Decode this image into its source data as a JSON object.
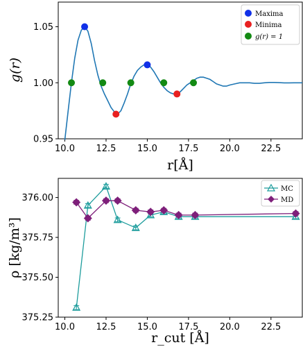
{
  "chart_data": [
    {
      "type": "line",
      "title": "",
      "xlabel": "r[Å]",
      "ylabel": "g(r)",
      "xlim": [
        9.6,
        24.4
      ],
      "ylim": [
        0.95,
        1.072
      ],
      "xticks": [
        "10.0",
        "12.5",
        "15.0",
        "17.5",
        "20.0",
        "22.5"
      ],
      "xtick_values": [
        10,
        12.5,
        15,
        17.5,
        20,
        22.5
      ],
      "yticks": [
        "0.95",
        "1.00",
        "1.05"
      ],
      "ytick_values": [
        0.95,
        1.0,
        1.05
      ],
      "curve": {
        "color": "#1f77b4",
        "x": [
          10.0,
          10.2,
          10.4,
          10.6,
          10.8,
          11.0,
          11.2,
          11.4,
          11.6,
          11.8,
          12.0,
          12.2,
          12.4,
          12.6,
          12.8,
          13.0,
          13.2,
          13.4,
          13.6,
          13.8,
          14.0,
          14.2,
          14.4,
          14.6,
          14.8,
          15.0,
          15.2,
          15.4,
          15.6,
          15.8,
          16.0,
          16.2,
          16.4,
          16.6,
          16.8,
          17.0,
          17.2,
          17.4,
          17.6,
          17.8,
          18.0,
          18.2,
          18.4,
          18.6,
          18.8,
          19.0,
          19.2,
          19.4,
          19.6,
          19.8,
          20.0,
          20.3,
          20.6,
          20.9,
          21.2,
          21.5,
          21.8,
          22.1,
          22.4,
          22.7,
          23.0,
          23.3,
          23.6,
          23.9,
          24.2,
          24.4
        ],
        "y": [
          0.949,
          0.975,
          1.0,
          1.022,
          1.038,
          1.047,
          1.05,
          1.046,
          1.035,
          1.02,
          1.007,
          0.997,
          0.99,
          0.984,
          0.978,
          0.974,
          0.972,
          0.975,
          0.982,
          0.99,
          0.999,
          1.006,
          1.011,
          1.014,
          1.016,
          1.016,
          1.014,
          1.01,
          1.005,
          1.0,
          0.996,
          0.993,
          0.991,
          0.99,
          0.99,
          0.992,
          0.995,
          0.998,
          1.0,
          1.002,
          1.004,
          1.005,
          1.005,
          1.004,
          1.003,
          1.001,
          0.999,
          0.998,
          0.997,
          0.997,
          0.998,
          0.999,
          1.0,
          1.0,
          1.0,
          0.9995,
          0.9995,
          1.0,
          1.0003,
          1.0003,
          1.0001,
          0.9999,
          0.9999,
          1.0,
          1.0,
          1.0
        ]
      },
      "series": [
        {
          "name": "Maxima",
          "color": "#1030e8",
          "x": [
            11.2,
            15.0
          ],
          "y": [
            1.05,
            1.016
          ]
        },
        {
          "name": "Minima",
          "color": "#e82020",
          "x": [
            13.1,
            16.8
          ],
          "y": [
            0.972,
            0.99
          ]
        },
        {
          "name": "g(r) = 1",
          "color": "#138a13",
          "x": [
            10.4,
            12.3,
            14.0,
            16.0,
            17.8
          ],
          "y": [
            1.0,
            1.0,
            1.0,
            1.0,
            1.0
          ]
        }
      ],
      "legend": "top-right"
    },
    {
      "type": "line",
      "title": "",
      "xlabel": "r_cut [Å]",
      "ylabel": "ρ [kg/m³]",
      "xlim": [
        9.6,
        24.4
      ],
      "ylim": [
        375.25,
        376.12
      ],
      "xticks": [
        "10.0",
        "12.5",
        "15.0",
        "17.5",
        "20.0",
        "22.5"
      ],
      "xtick_values": [
        10,
        12.5,
        15,
        17.5,
        20,
        22.5
      ],
      "yticks": [
        "375.25",
        "375.50",
        "375.75",
        "376.00"
      ],
      "ytick_values": [
        375.25,
        375.5,
        375.75,
        376.0
      ],
      "series": [
        {
          "name": "MC",
          "color": "#1c9c9c",
          "marker": "triangle-up",
          "x": [
            10.7,
            11.4,
            12.5,
            13.2,
            14.3,
            15.2,
            16.0,
            16.9,
            17.9,
            24.0
          ],
          "y": [
            375.31,
            375.95,
            376.07,
            375.86,
            375.81,
            375.89,
            375.91,
            375.88,
            375.88,
            375.88
          ],
          "err": [
            0.012,
            0.012,
            0.012,
            0.012,
            0.012,
            0.012,
            0.012,
            0.012,
            0.012,
            0.012
          ]
        },
        {
          "name": "MD",
          "color": "#7e1f7a",
          "marker": "diamond",
          "x": [
            10.7,
            11.4,
            12.5,
            13.2,
            14.3,
            15.2,
            16.0,
            16.9,
            17.9,
            24.0
          ],
          "y": [
            375.97,
            375.87,
            375.98,
            375.98,
            375.92,
            375.91,
            375.92,
            375.89,
            375.89,
            375.9
          ],
          "err": [
            0.012,
            0.012,
            0.012,
            0.012,
            0.012,
            0.012,
            0.012,
            0.012,
            0.012,
            0.012
          ]
        }
      ],
      "legend": "top-right"
    }
  ]
}
